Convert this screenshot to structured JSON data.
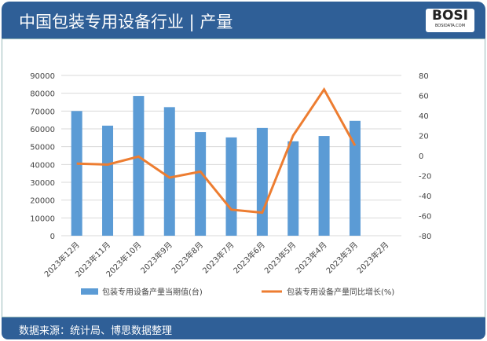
{
  "header": {
    "title": "中国包装专用设备行业 | 产量",
    "logo": "BOSI",
    "logo_sub": "BOSIDATA.COM"
  },
  "footer": {
    "source": "数据来源：统计局、博思数据整理"
  },
  "chart_data": {
    "type": "bar+line",
    "categories": [
      "2023年12月",
      "2023年11月",
      "2023年10月",
      "2023年9月",
      "2023年8月",
      "2023年7月",
      "2023年6月",
      "2023年5月",
      "2023年4月",
      "2023年3月",
      "2023年2月"
    ],
    "series": [
      {
        "name": "包装专用设备产量当期值(台)",
        "type": "bar",
        "axis": "left",
        "color": "#5b9bd5",
        "values": [
          70000,
          61800,
          78500,
          72200,
          58200,
          55200,
          60500,
          53000,
          56000,
          64500,
          null
        ]
      },
      {
        "name": "包装专用设备产量同比增长(%)",
        "type": "line",
        "axis": "right",
        "color": "#ed7d31",
        "values": [
          -8,
          -9,
          -1,
          -22,
          -16,
          -54,
          -57,
          20,
          66,
          10,
          null
        ]
      }
    ],
    "y_left": {
      "range": [
        0,
        90000
      ],
      "ticks": [
        0,
        10000,
        20000,
        30000,
        40000,
        50000,
        60000,
        70000,
        80000,
        90000
      ]
    },
    "y_right": {
      "range": [
        -80,
        80
      ],
      "ticks": [
        -80,
        -60,
        -40,
        -20,
        0,
        20,
        40,
        60,
        80
      ]
    },
    "grid": true,
    "legend": "bottom"
  }
}
